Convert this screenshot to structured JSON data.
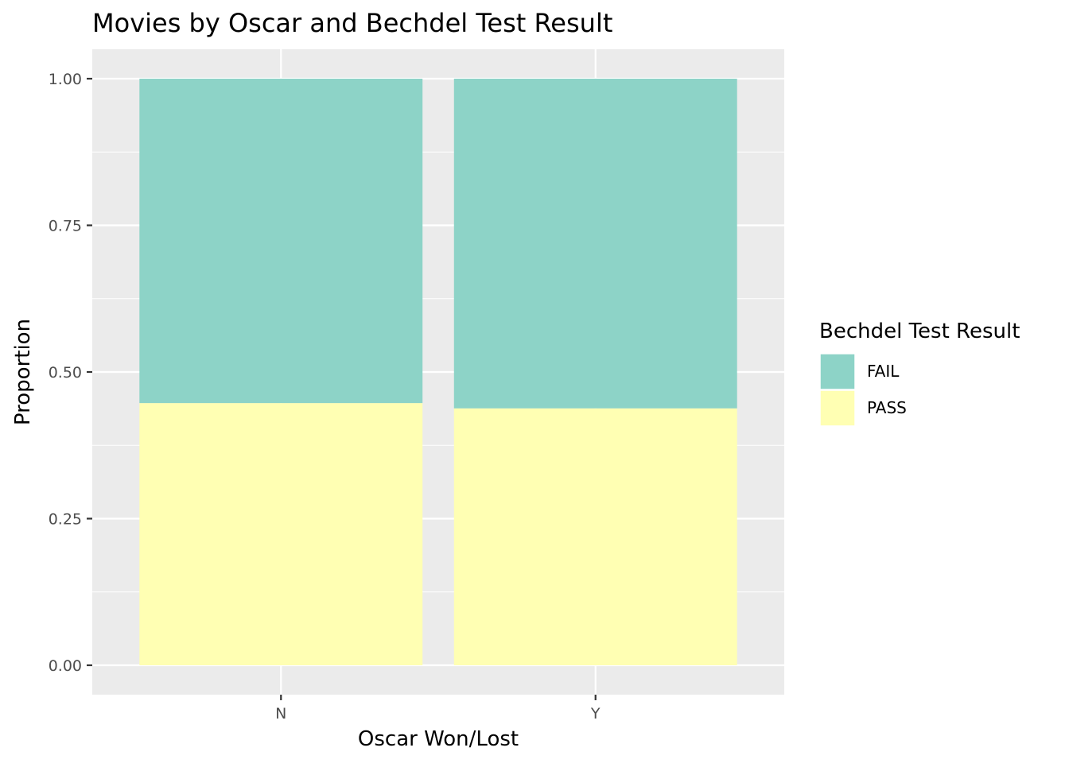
{
  "chart_data": {
    "type": "bar",
    "stacked": true,
    "title": "Movies by Oscar and Bechdel Test Result",
    "xlabel": "Oscar Won/Lost",
    "ylabel": "Proportion",
    "categories": [
      "N",
      "Y"
    ],
    "ylim": [
      0,
      1
    ],
    "yticks": [
      "0.00",
      "0.25",
      "0.50",
      "0.75",
      "1.00"
    ],
    "series": [
      {
        "name": "PASS",
        "color": "#ffffb3",
        "values": [
          0.447,
          0.438
        ]
      },
      {
        "name": "FAIL",
        "color": "#8dd3c7",
        "values": [
          0.553,
          0.562
        ]
      }
    ],
    "legend": {
      "title": "Bechdel Test Result",
      "position": "right",
      "order": [
        "FAIL",
        "PASS"
      ]
    },
    "panel_background": "#ebebeb",
    "grid": true,
    "grid_color": "#ffffff"
  }
}
